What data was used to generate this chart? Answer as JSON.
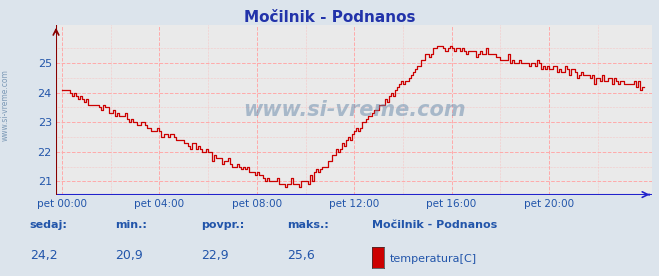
{
  "title": "Močilnik - Podnanos",
  "bg_color": "#dce4ec",
  "plot_bg_color": "#eaeaea",
  "line_color": "#cc0000",
  "text_color": "#2255aa",
  "title_color": "#2233aa",
  "ylim": [
    20.55,
    26.3
  ],
  "yticks": [
    21,
    22,
    23,
    24,
    25
  ],
  "xtick_labels": [
    "pet 00:00",
    "pet 04:00",
    "pet 08:00",
    "pet 12:00",
    "pet 16:00",
    "pet 20:00"
  ],
  "xtick_positions": [
    0,
    48,
    96,
    144,
    192,
    240
  ],
  "n_points": 288,
  "sedaj_label": "sedaj:",
  "sedaj": "24,2",
  "min_label": "min.:",
  "min_val": "20,9",
  "povpr_label": "povpr.:",
  "povpr": "22,9",
  "maks_label": "maks.:",
  "maks": "25,6",
  "station": "Močilnik - Podnanos",
  "legend_label": "temperatura[C]",
  "legend_color": "#cc0000",
  "watermark": "www.si-vreme.com",
  "left_watermark": "www.si-vreme.com",
  "bottom_label_color": "#2255aa",
  "bottom_value_color": "#2255aa",
  "grid_major_color": "#ffffff",
  "grid_minor_color": "#ffaaaa",
  "axis_bottom_color": "#2222cc",
  "axis_left_color": "#880000"
}
